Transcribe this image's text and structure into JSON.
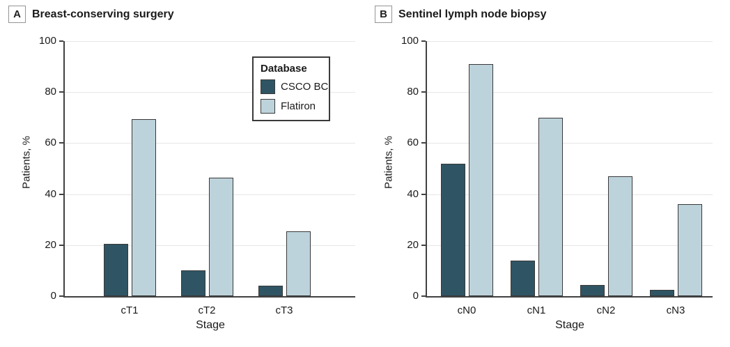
{
  "figure": {
    "panels": [
      {
        "letter": "A",
        "title": "Breast-conserving surgery"
      },
      {
        "letter": "B",
        "title": "Sentinel lymph node biopsy"
      }
    ],
    "legend": {
      "title": "Database",
      "items": [
        {
          "label": "CSCO BC",
          "color": "#2F5564"
        },
        {
          "label": "Flatiron",
          "color": "#BDD3DC"
        }
      ],
      "position": "inside panel A, top right"
    }
  },
  "chart_data": [
    {
      "type": "bar",
      "panel": "A",
      "title": "Breast-conserving surgery",
      "categories": [
        "cT1",
        "cT2",
        "cT3"
      ],
      "series": [
        {
          "name": "CSCO BC",
          "color": "#2F5564",
          "values": [
            20.5,
            10,
            4
          ]
        },
        {
          "name": "Flatiron",
          "color": "#BDD3DC",
          "values": [
            69.5,
            46.5,
            25.5
          ]
        }
      ],
      "xlabel": "Stage",
      "ylabel": "Patients, %",
      "ylim": [
        0,
        100
      ],
      "yticks": [
        0,
        20,
        40,
        60,
        80,
        100
      ],
      "grid": "horizontal light-gray gridlines at y ticks",
      "bar_style": "grouped pairs with thin dark outline"
    },
    {
      "type": "bar",
      "panel": "B",
      "title": "Sentinel lymph node biopsy",
      "categories": [
        "cN0",
        "cN1",
        "cN2",
        "cN3"
      ],
      "series": [
        {
          "name": "CSCO BC",
          "color": "#2F5564",
          "values": [
            52,
            14,
            4.5,
            2.5
          ]
        },
        {
          "name": "Flatiron",
          "color": "#BDD3DC",
          "values": [
            91,
            70,
            47,
            36
          ]
        }
      ],
      "xlabel": "Stage",
      "ylabel": "Patients, %",
      "ylim": [
        0,
        100
      ],
      "yticks": [
        0,
        20,
        40,
        60,
        80,
        100
      ],
      "grid": "horizontal light-gray gridlines at y ticks",
      "bar_style": "grouped pairs with thin dark outline"
    }
  ],
  "colors": {
    "background": "#ffffff",
    "axis": "#414141",
    "gridline": "#e6e6e6",
    "bar_border": "#383838",
    "legend_border": "#3a3a3a",
    "text": "#1a1a1a"
  }
}
